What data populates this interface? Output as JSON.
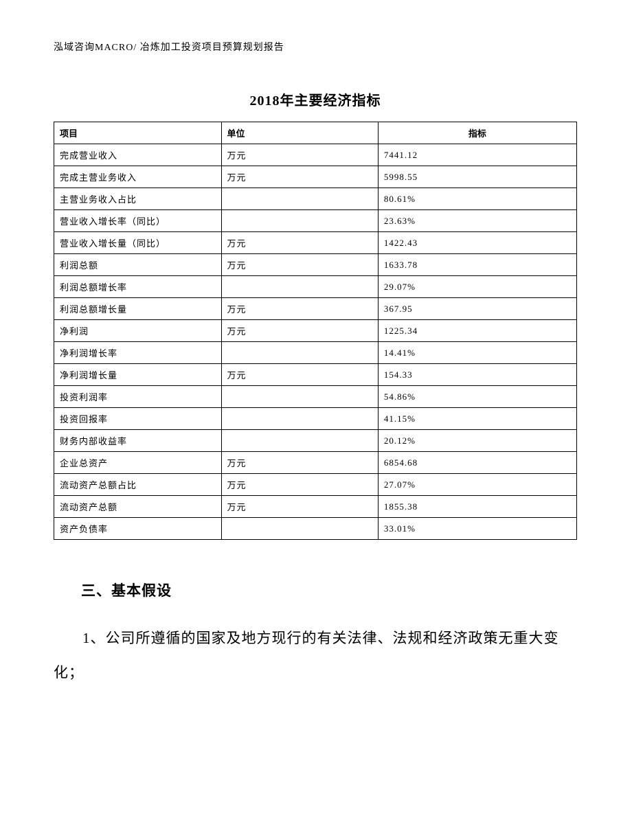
{
  "header": "泓域咨询MACRO/   冶炼加工投资项目预算规划报告",
  "title": "2018年主要经济指标",
  "table": {
    "columns": [
      "项目",
      "单位",
      "指标"
    ],
    "rows": [
      [
        "完成营业收入",
        "万元",
        "7441.12"
      ],
      [
        "完成主营业务收入",
        "万元",
        "5998.55"
      ],
      [
        "主营业务收入占比",
        "",
        "80.61%"
      ],
      [
        "营业收入增长率（同比）",
        "",
        "23.63%"
      ],
      [
        "营业收入增长量（同比）",
        "万元",
        "1422.43"
      ],
      [
        "利润总额",
        "万元",
        "1633.78"
      ],
      [
        "利润总额增长率",
        "",
        "29.07%"
      ],
      [
        "利润总额增长量",
        "万元",
        "367.95"
      ],
      [
        "净利润",
        "万元",
        "1225.34"
      ],
      [
        "净利润增长率",
        "",
        "14.41%"
      ],
      [
        "净利润增长量",
        "万元",
        "154.33"
      ],
      [
        "投资利润率",
        "",
        "54.86%"
      ],
      [
        "投资回报率",
        "",
        "41.15%"
      ],
      [
        "财务内部收益率",
        "",
        "20.12%"
      ],
      [
        "企业总资产",
        "万元",
        "6854.68"
      ],
      [
        "流动资产总额占比",
        "万元",
        "27.07%"
      ],
      [
        "流动资产总额",
        "万元",
        "1855.38"
      ],
      [
        "资产负债率",
        "",
        "33.01%"
      ]
    ]
  },
  "section_heading": "三、基本假设",
  "body_paragraph": "1、公司所遵循的国家及地方现行的有关法律、法规和经济政策无重大变化；"
}
